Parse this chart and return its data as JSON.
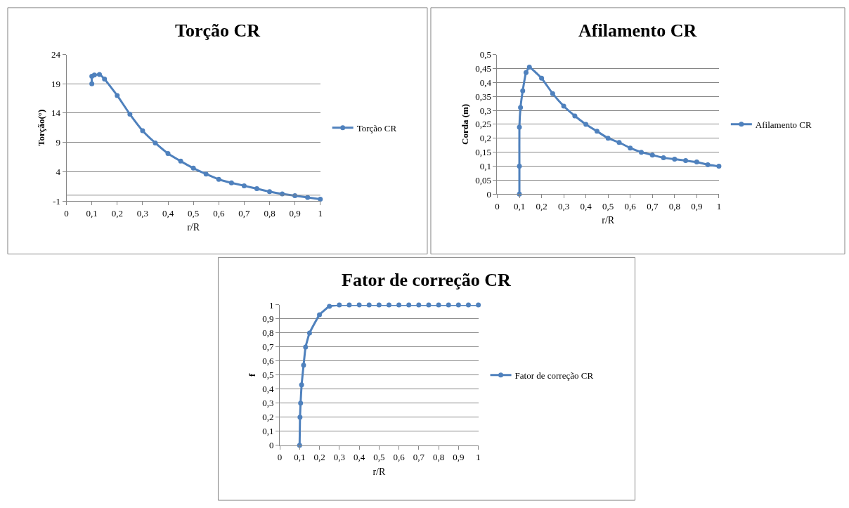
{
  "chart_data": [
    {
      "type": "line",
      "title": "Torção CR",
      "xlabel": "r/R",
      "ylabel": "Torção(°)",
      "x": [
        0.1,
        0.1,
        0.11,
        0.13,
        0.15,
        0.2,
        0.25,
        0.3,
        0.35,
        0.4,
        0.45,
        0.5,
        0.55,
        0.6,
        0.65,
        0.7,
        0.75,
        0.8,
        0.85,
        0.9,
        0.95,
        1
      ],
      "series": [
        {
          "name": "Torção CR",
          "color": "#4f81bd",
          "values": [
            19,
            20.3,
            20.5,
            20.6,
            19.8,
            17,
            13.8,
            11,
            8.9,
            7.1,
            5.8,
            4.6,
            3.6,
            2.7,
            2.1,
            1.6,
            1.1,
            0.6,
            0.2,
            -0.1,
            -0.4,
            -0.7
          ]
        }
      ],
      "xlim": [
        0,
        1
      ],
      "ylim": [
        -1,
        24
      ],
      "xticks": [
        0,
        {
          "value": 0.1,
          "label": "0,1"
        },
        {
          "value": 0.2,
          "label": "0,2"
        },
        {
          "value": 0.3,
          "label": "0,3"
        },
        {
          "value": 0.4,
          "label": "0,4"
        },
        {
          "value": 0.5,
          "label": "0,5"
        },
        {
          "value": 0.6,
          "label": "0,6"
        },
        {
          "value": 0.7,
          "label": "0,7"
        },
        {
          "value": 0.8,
          "label": "0,8"
        },
        {
          "value": 0.9,
          "label": "0,9"
        },
        1
      ],
      "yticks": [
        -1,
        4,
        9,
        14,
        19,
        24
      ],
      "ref_lines": [
        {
          "axis": "y",
          "value": 0,
          "color": "#868686"
        }
      ],
      "grid": "y",
      "legend": "right",
      "marker": "circle",
      "line_style": "solid"
    },
    {
      "type": "line",
      "title": "Afilamento CR",
      "xlabel": "r/R",
      "ylabel": "Corda (m)",
      "x": [
        0.1,
        0.1,
        0.1,
        0.105,
        0.115,
        0.13,
        0.145,
        0.2,
        0.25,
        0.3,
        0.35,
        0.4,
        0.45,
        0.5,
        0.55,
        0.6,
        0.65,
        0.7,
        0.75,
        0.8,
        0.85,
        0.9,
        0.95,
        1
      ],
      "series": [
        {
          "name": "Afilamento CR",
          "color": "#4f81bd",
          "values": [
            0,
            0.1,
            0.24,
            0.31,
            0.37,
            0.435,
            0.455,
            0.415,
            0.36,
            0.315,
            0.28,
            0.25,
            0.225,
            0.2,
            0.185,
            0.165,
            0.15,
            0.14,
            0.13,
            0.125,
            0.12,
            0.115,
            0.105,
            0.1
          ]
        }
      ],
      "xlim": [
        0,
        1
      ],
      "ylim": [
        0,
        0.5
      ],
      "xticks": [
        0,
        {
          "value": 0.1,
          "label": "0,1"
        },
        {
          "value": 0.2,
          "label": "0,2"
        },
        {
          "value": 0.3,
          "label": "0,3"
        },
        {
          "value": 0.4,
          "label": "0,4"
        },
        {
          "value": 0.5,
          "label": "0,5"
        },
        {
          "value": 0.6,
          "label": "0,6"
        },
        {
          "value": 0.7,
          "label": "0,7"
        },
        {
          "value": 0.8,
          "label": "0,8"
        },
        {
          "value": 0.9,
          "label": "0,9"
        },
        1
      ],
      "yticks": [
        0,
        {
          "value": 0.05,
          "label": "0,05"
        },
        {
          "value": 0.1,
          "label": "0,1"
        },
        {
          "value": 0.15,
          "label": "0,15"
        },
        {
          "value": 0.2,
          "label": "0,2"
        },
        {
          "value": 0.25,
          "label": "0,25"
        },
        {
          "value": 0.3,
          "label": "0,3"
        },
        {
          "value": 0.35,
          "label": "0,35"
        },
        {
          "value": 0.4,
          "label": "0,4"
        },
        {
          "value": 0.45,
          "label": "0,45"
        },
        {
          "value": 0.5,
          "label": "0,5"
        }
      ],
      "grid": "y",
      "legend": "right",
      "marker": "circle",
      "line_style": "solid"
    },
    {
      "type": "line",
      "title": "Fator de correção CR",
      "xlabel": "r/R",
      "ylabel": "f",
      "x": [
        0.1,
        0.102,
        0.105,
        0.11,
        0.12,
        0.13,
        0.15,
        0.2,
        0.25,
        0.3,
        0.35,
        0.4,
        0.45,
        0.5,
        0.55,
        0.6,
        0.65,
        0.7,
        0.75,
        0.8,
        0.85,
        0.9,
        0.95,
        1
      ],
      "series": [
        {
          "name": "Fator de correção CR",
          "color": "#4f81bd",
          "values": [
            0,
            0.2,
            0.3,
            0.43,
            0.57,
            0.7,
            0.8,
            0.93,
            0.99,
            1,
            1,
            1,
            1,
            1,
            1,
            1,
            1,
            1,
            1,
            1,
            1,
            1,
            1,
            1
          ]
        }
      ],
      "xlim": [
        0,
        1
      ],
      "ylim": [
        0,
        1
      ],
      "xticks": [
        0,
        {
          "value": 0.1,
          "label": "0,1"
        },
        {
          "value": 0.2,
          "label": "0,2"
        },
        {
          "value": 0.3,
          "label": "0,3"
        },
        {
          "value": 0.4,
          "label": "0,4"
        },
        {
          "value": 0.5,
          "label": "0,5"
        },
        {
          "value": 0.6,
          "label": "0,6"
        },
        {
          "value": 0.7,
          "label": "0,7"
        },
        {
          "value": 0.8,
          "label": "0,8"
        },
        {
          "value": 0.9,
          "label": "0,9"
        },
        1
      ],
      "yticks": [
        0,
        {
          "value": 0.1,
          "label": "0,1"
        },
        {
          "value": 0.2,
          "label": "0,2"
        },
        {
          "value": 0.3,
          "label": "0,3"
        },
        {
          "value": 0.4,
          "label": "0,4"
        },
        {
          "value": 0.5,
          "label": "0,5"
        },
        {
          "value": 0.6,
          "label": "0,6"
        },
        {
          "value": 0.7,
          "label": "0,7"
        },
        {
          "value": 0.8,
          "label": "0,8"
        },
        {
          "value": 0.9,
          "label": "0,9"
        },
        1
      ],
      "grid": "y",
      "legend": "right",
      "marker": "circle",
      "line_style": "solid"
    }
  ]
}
